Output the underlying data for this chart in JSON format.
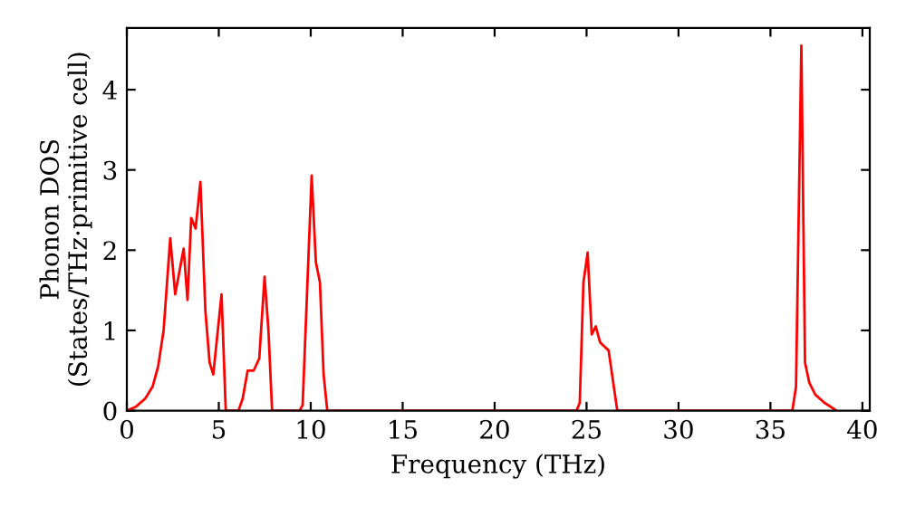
{
  "chart_data": {
    "type": "line",
    "xlabel": "Frequency (THz)",
    "ylabel": "Phonon DOS\n(States/THz·primitive cell)",
    "series": [
      {
        "color": "#ff0000",
        "x": [
          0,
          0.5,
          1.0,
          1.4,
          1.7,
          2.0,
          2.36,
          2.63,
          3.09,
          3.3,
          3.5,
          3.74,
          4.0,
          4.27,
          4.5,
          4.7,
          5.15,
          5.38,
          6.07,
          6.3,
          6.57,
          6.9,
          7.2,
          7.49,
          7.7,
          7.9,
          9.39,
          9.56,
          10.05,
          10.28,
          10.5,
          10.7,
          10.9,
          24.46,
          24.63,
          24.83,
          25.06,
          25.28,
          25.5,
          25.74,
          26.2,
          26.67,
          36.19,
          36.39,
          36.68,
          36.88,
          37.11,
          37.44,
          37.93,
          38.6
        ],
        "values": [
          0,
          0.05,
          0.15,
          0.3,
          0.55,
          1.0,
          2.15,
          1.45,
          2.02,
          1.38,
          2.4,
          2.27,
          2.85,
          1.25,
          0.6,
          0.45,
          1.45,
          0,
          0,
          0.15,
          0.5,
          0.5,
          0.65,
          1.67,
          1.0,
          0,
          0,
          0.07,
          2.93,
          1.85,
          1.6,
          0.45,
          0,
          0,
          0.1,
          1.6,
          1.97,
          0.95,
          1.05,
          0.85,
          0.75,
          0,
          0,
          0.3,
          4.55,
          0.6,
          0.35,
          0.2,
          0.1,
          0
        ]
      }
    ],
    "xlim": [
      0,
      40.4
    ],
    "ylim": [
      0,
      4.77
    ],
    "xticks": [
      0,
      5,
      10,
      15,
      20,
      25,
      30,
      35,
      40
    ],
    "yticks": [
      0,
      1,
      2,
      3,
      4
    ],
    "grid": false,
    "legend": false,
    "marker": "none",
    "line_style": "solid"
  }
}
